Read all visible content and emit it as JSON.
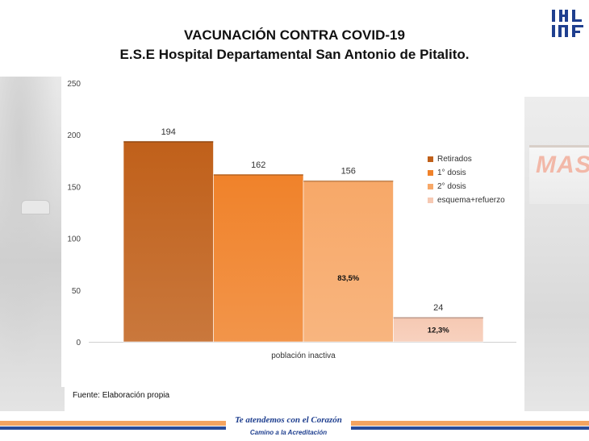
{
  "page": {
    "title_line1": "VACUNACIÓN CONTRA COVID-19",
    "title_line2": "E.S.E Hospital Departamental San Antonio de Pitalito.",
    "source": "Fuente: Elaboración propia",
    "footer_line1": "Te atendemos con el Corazón",
    "footer_line2": "Camino a la Acreditación",
    "background_sign_text": "MAS"
  },
  "colors": {
    "retirados": "#c0601a",
    "primera_dosis": "#f0822a",
    "segunda_dosis": "#f7a868",
    "esquema_refuerzo": "#f6c9b3",
    "footer_orange": "#f4a460",
    "footer_blue": "#2a4d9a",
    "logo_blue": "#1f3f8f"
  },
  "chart_data": {
    "type": "bar",
    "categories": [
      "población inactiva"
    ],
    "series": [
      {
        "name": "Retirados",
        "values": [
          194
        ],
        "color": "#c0601a"
      },
      {
        "name": "1° dosis",
        "values": [
          162
        ],
        "color": "#f0822a"
      },
      {
        "name": "2° dosis",
        "values": [
          156
        ],
        "color": "#f7a868",
        "annotation": "83,5%"
      },
      {
        "name": "esquema+refuerzo",
        "values": [
          24
        ],
        "color": "#f6c9b3",
        "annotation": "12,3%"
      }
    ],
    "yticks": [
      "0",
      "50",
      "100",
      "150",
      "200",
      "250"
    ],
    "ylim": [
      0,
      250
    ],
    "grid": false,
    "legend_position": "right"
  }
}
